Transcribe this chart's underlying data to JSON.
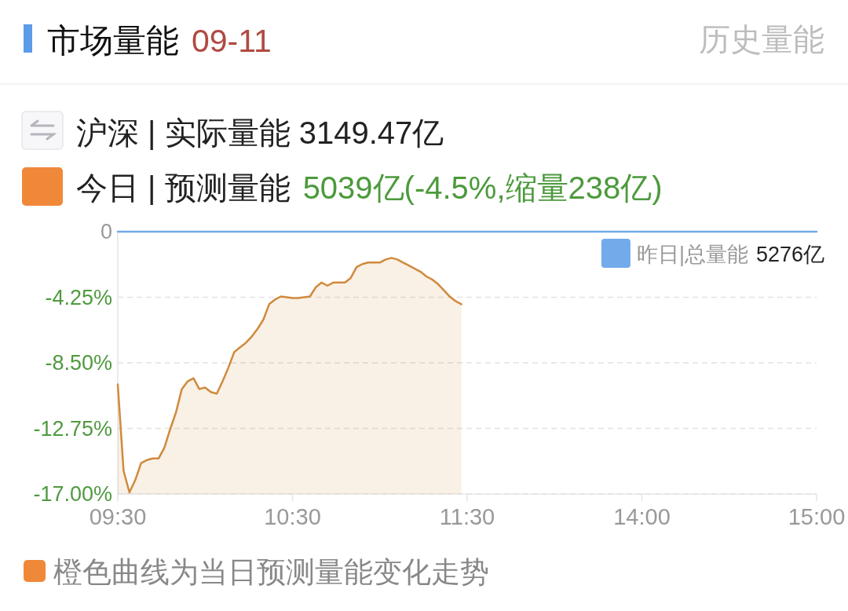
{
  "chart_data": {
    "type": "line",
    "title": "市场量能",
    "subtitle": "09-11",
    "annotations": [
      "历史量能",
      "沪深 | 实际量能 3149.47亿",
      "今日 | 预测量能",
      "5039亿(-4.5%,缩量238亿)",
      "5276亿",
      "橙色曲线为当日预测量能变化走势"
    ],
    "categories": [
      "09:30",
      null,
      null,
      null,
      null,
      null,
      null,
      null,
      null,
      null,
      null,
      null,
      null,
      null,
      null,
      null,
      null,
      null,
      null,
      null,
      null,
      null,
      null,
      null,
      null,
      null,
      null,
      null,
      null,
      null,
      "10:30",
      null,
      null,
      null,
      null,
      null,
      null,
      null,
      null,
      null,
      null,
      null,
      null,
      null,
      null,
      null,
      null,
      null,
      null,
      null,
      null,
      null,
      null,
      null,
      null,
      null,
      null,
      null,
      null,
      null,
      "11:30",
      null,
      null,
      null,
      null,
      null,
      null,
      null,
      null,
      null,
      null,
      null,
      null,
      null,
      null,
      null,
      null,
      null,
      null,
      null,
      null,
      null,
      null,
      null,
      null,
      null,
      null,
      null,
      null,
      null,
      "14:00",
      null,
      null,
      null,
      null,
      null,
      null,
      null,
      null,
      null,
      null,
      null,
      null,
      null,
      null,
      null,
      null,
      null,
      null,
      null,
      null,
      null,
      null,
      null,
      null,
      null,
      null,
      null,
      null,
      null,
      "15:00"
    ],
    "ylim": [
      -17,
      0
    ],
    "yticks": [
      0,
      {
        "value": -4.25,
        "label": "-4.25%"
      },
      {
        "value": -8.5,
        "label": "-8.50%"
      },
      {
        "value": -12.75,
        "label": "-12.75%"
      },
      {
        "value": -17,
        "label": "-17.00%"
      }
    ],
    "grid": "y",
    "legend": "top right",
    "series": [
      {
        "name": "昨日|总量能",
        "color": "#72aaea",
        "values": [
          0,
          0,
          0,
          0,
          0,
          0,
          0,
          0,
          0,
          0,
          0,
          0,
          0,
          0,
          0,
          0,
          0,
          0,
          0,
          0,
          0,
          0,
          0,
          0,
          0,
          0,
          0,
          0,
          0,
          0,
          0,
          0,
          0,
          0,
          0,
          0,
          0,
          0,
          0,
          0,
          0,
          0,
          0,
          0,
          0,
          0,
          0,
          0,
          0,
          0,
          0,
          0,
          0,
          0,
          0,
          0,
          0,
          0,
          0,
          0,
          0,
          0,
          0,
          0,
          0,
          0,
          0,
          0,
          0,
          0,
          0,
          0,
          0,
          0,
          0,
          0,
          0,
          0,
          0,
          0,
          0,
          0,
          0,
          0,
          0,
          0,
          0,
          0,
          0,
          0,
          0,
          0,
          0,
          0,
          0,
          0,
          0,
          0,
          0,
          0,
          0,
          0,
          0,
          0,
          0,
          0,
          0,
          0,
          0,
          0,
          0,
          0,
          0,
          0,
          0,
          0,
          0,
          0,
          0,
          0,
          0
        ]
      },
      {
        "color": "#d08a3c",
        "values": [
          -9.9,
          -15.5,
          -16.9,
          -16.1,
          -15.0,
          -14.8,
          -14.7,
          -14.7,
          -14.0,
          -12.8,
          -11.7,
          -10.2,
          -9.7,
          -9.5,
          -10.2,
          -10.1,
          -10.4,
          -10.5,
          -9.7,
          -8.8,
          -7.8,
          -7.5,
          -7.2,
          -6.8,
          -6.3,
          -5.7,
          -4.7,
          -4.4,
          -4.2,
          -4.25,
          -4.3,
          -4.3,
          -4.25,
          -4.2,
          -3.6,
          -3.3,
          -3.5,
          -3.3,
          -3.3,
          -3.3,
          -3.0,
          -2.3,
          -2.1,
          -2.0,
          -2.0,
          -2.0,
          -1.8,
          -1.7,
          -1.8,
          -2.0,
          -2.2,
          -2.4,
          -2.6,
          -2.9,
          -3.1,
          -3.4,
          -3.8,
          -4.2,
          -4.5,
          -4.7,
          null,
          null,
          null,
          null,
          null,
          null,
          null,
          null,
          null,
          null,
          null,
          null,
          null,
          null,
          null,
          null,
          null,
          null,
          null,
          null,
          null,
          null,
          null,
          null,
          null,
          null,
          null,
          null,
          null,
          null,
          null,
          null,
          null,
          null,
          null,
          null,
          null,
          null,
          null,
          null,
          null,
          null,
          null,
          null,
          null,
          null,
          null,
          null,
          null,
          null,
          null,
          null,
          null,
          null,
          null,
          null,
          null,
          null,
          null,
          null,
          null
        ],
        "upper": [
          -9.9,
          -15.5,
          -16.9,
          -16.1,
          -15.0,
          -14.8,
          -14.7,
          -14.7,
          -14.0,
          -12.8,
          -11.7,
          -10.2,
          -9.7,
          -9.5,
          -10.2,
          -10.1,
          -10.4,
          -10.5,
          -9.7,
          -8.8,
          -7.8,
          -7.5,
          -7.2,
          -6.8,
          -6.3,
          -5.7,
          -4.7,
          -4.4,
          -4.2,
          -4.25,
          -4.3,
          -4.3,
          -4.25,
          -4.2,
          -3.6,
          -3.3,
          -3.5,
          -3.3,
          -3.3,
          -3.3,
          -3.0,
          -2.3,
          -2.1,
          -2.0,
          -2.0,
          -2.0,
          -1.8,
          -1.7,
          -1.8,
          -2.0,
          -2.2,
          -2.4,
          -2.6,
          -2.9,
          -3.1,
          -3.4,
          -3.8,
          -4.2,
          -4.5,
          -4.7,
          null,
          null,
          null,
          null,
          null,
          null,
          null,
          null,
          null,
          null,
          null,
          null,
          null,
          null,
          null,
          null,
          null,
          null,
          null,
          null,
          null,
          null,
          null,
          null,
          null,
          null,
          null,
          null,
          null,
          null,
          null,
          null,
          null,
          null,
          null,
          null,
          null,
          null,
          null,
          null,
          null,
          null,
          null,
          null,
          null,
          null,
          null,
          null,
          null,
          null,
          null,
          null,
          null,
          null,
          null,
          null,
          null,
          null,
          null,
          null,
          null
        ],
        "lower": [
          -17,
          -17,
          -17,
          -17,
          -17,
          -17,
          -17,
          -17,
          -17,
          -17,
          -17,
          -17,
          -17,
          -17,
          -17,
          -17,
          -17,
          -17,
          -17,
          -17,
          -17,
          -17,
          -17,
          -17,
          -17,
          -17,
          -17,
          -17,
          -17,
          -17,
          -17,
          -17,
          -17,
          -17,
          -17,
          -17,
          -17,
          -17,
          -17,
          -17,
          -17,
          -17,
          -17,
          -17,
          -17,
          -17,
          -17,
          -17,
          -17,
          -17,
          -17,
          -17,
          -17,
          -17,
          -17,
          -17,
          -17,
          -17,
          -17,
          -17,
          null,
          null,
          null,
          null,
          null,
          null,
          null,
          null,
          null,
          null,
          null,
          null,
          null,
          null,
          null,
          null,
          null,
          null,
          null,
          null,
          null,
          null,
          null,
          null,
          null,
          null,
          null,
          null,
          null,
          null,
          null,
          null,
          null,
          null,
          null,
          null,
          null,
          null,
          null,
          null,
          null,
          null,
          null,
          null,
          null,
          null,
          null,
          null,
          null,
          null,
          null,
          null,
          null,
          null,
          null,
          null,
          null,
          null,
          null,
          null,
          null
        ]
      }
    ]
  }
}
